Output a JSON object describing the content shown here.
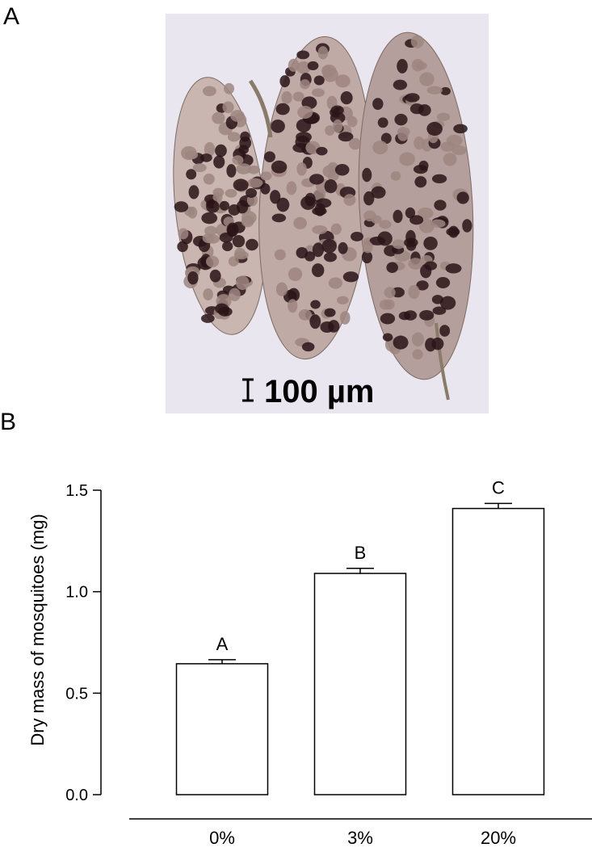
{
  "panel_a": {
    "label": "A",
    "scale_bar": "100 µm"
  },
  "panel_b": {
    "label": "B"
  },
  "chart_data": {
    "type": "bar",
    "y_label": "Dry mass of mosquitoes (mg)",
    "categories": [
      "0%",
      "3%",
      "20%"
    ],
    "values": [
      0.645,
      1.09,
      1.41
    ],
    "errors": [
      0.02,
      0.025,
      0.025
    ],
    "bar_labels": [
      "A",
      "B",
      "C"
    ],
    "color": "#ffffff",
    "ylim": [
      0,
      1.5
    ],
    "yticks": [
      {
        "value": 0,
        "label": "0.0"
      },
      0.5,
      {
        "value": 1,
        "label": "1.0"
      },
      1.5
    ],
    "grid": false
  }
}
